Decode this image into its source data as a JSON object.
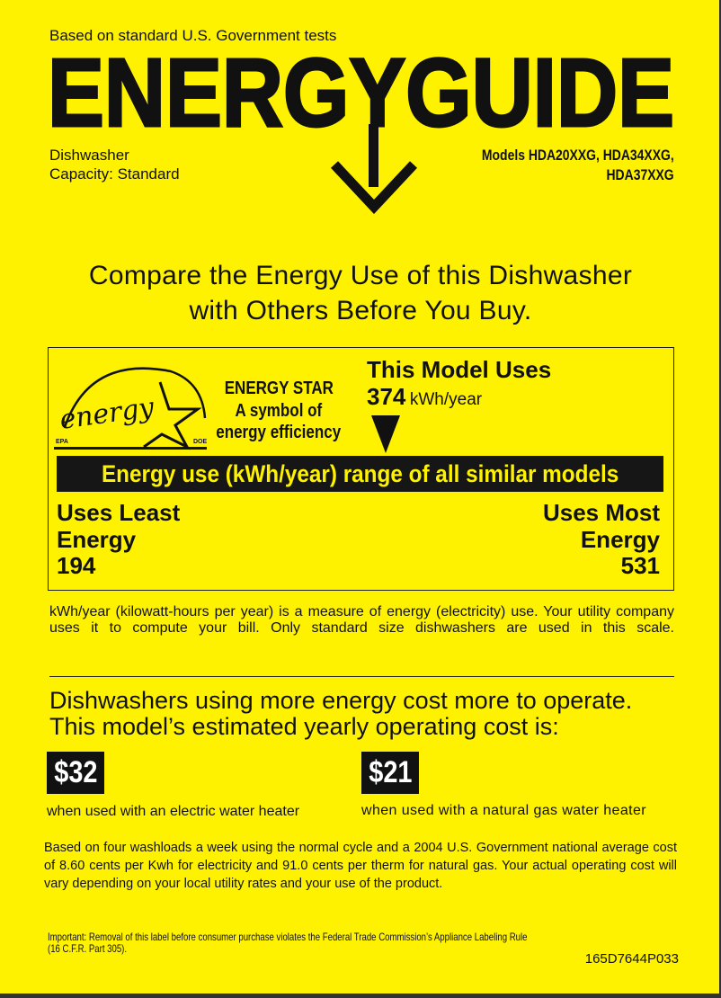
{
  "header": {
    "tests_note": "Based on standard U.S. Government tests",
    "logo_title": "ENERGYGUIDE",
    "appliance": "Dishwasher",
    "capacity": "Capacity: Standard",
    "models_line1": "Models HDA20XXG, HDA34XXG,",
    "models_line2": "HDA37XXG"
  },
  "headline": {
    "line1": "Compare the Energy Use of this Dishwasher",
    "line2": "with Others Before You Buy."
  },
  "energy_box": {
    "energy_star_logo_text": "energy",
    "logo_epa": "EPA",
    "logo_doe": "DOE",
    "star_line1": "ENERGY STAR",
    "star_line2": "A symbol of",
    "star_line3": "energy efficiency",
    "this_model_label": "This Model Uses",
    "this_model_value": "374",
    "this_model_unit": "kWh/year",
    "range_label": "Energy use (kWh/year) range of all similar models",
    "least_label1": "Uses Least",
    "least_label2": "Energy",
    "least_value": "194",
    "most_label1": "Uses Most",
    "most_label2": "Energy",
    "most_value": "531"
  },
  "kwh_note": "kWh/year (kilowatt-hours per year) is a measure of energy (electricity) use. Your utility company uses it to compute your bill. Only standard size dishwashers are used in this scale.",
  "cost": {
    "line1": "Dishwashers using more energy cost more to operate.",
    "line2": "This model’s estimated yearly operating cost is:",
    "electric_value": "$32",
    "electric_label": "when used with an electric water heater",
    "gas_value": "$21",
    "gas_label": "when used with a natural gas water heater",
    "basis": "Based on four washloads a week using the normal cycle and a 2004 U.S. Government national average cost of 8.60 cents per Kwh for electricity and 91.0 cents per therm for natural gas. Your actual operating cost will vary depending on your local utility rates and your use of the product."
  },
  "footer": {
    "important_line1": "Important: Removal of this label before consumer purchase violates the Federal Trade Commission’s Appliance Labeling Rule",
    "important_line2": "(16 C.F.R. Part 305).",
    "label_code": "165D7644P033"
  },
  "colors": {
    "background": "#fff200",
    "ink": "#111111"
  }
}
